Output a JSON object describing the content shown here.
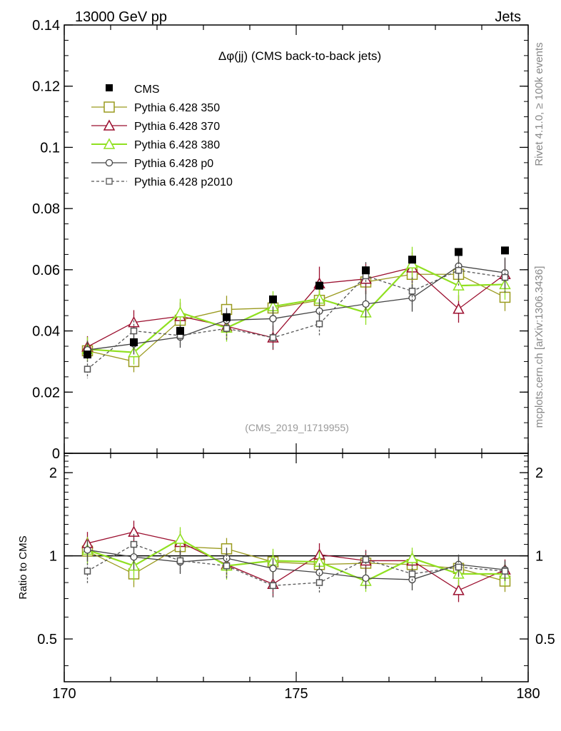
{
  "header": {
    "left": "13000 GeV pp",
    "right": "Jets"
  },
  "side_labels": {
    "rivet": "Rivet 4.1.0, ≥ 100k events",
    "mcplots": "mcplots.cern.ch [arXiv:1306.3436]"
  },
  "chart_data": {
    "type": "scatter",
    "title": "Δφ(jj) (CMS back-to-back jets)",
    "analysis_tag": "(CMS_2019_I1719955)",
    "xlabel": "",
    "ylabel": "",
    "xlim": [
      170,
      180
    ],
    "ylim": [
      0,
      0.14
    ],
    "y_ticks": [
      "0",
      "0.02",
      "0.04",
      "0.06",
      "0.08",
      "0.1",
      "0.12",
      "0.14"
    ],
    "x_ticks": [
      "170",
      "175",
      "180"
    ],
    "x": [
      170.5,
      171.5,
      172.5,
      173.5,
      174.5,
      175.5,
      176.5,
      177.5,
      178.5,
      179.5
    ],
    "series": [
      {
        "name": "CMS",
        "color": "#000000",
        "marker": "filled-square",
        "line": "none",
        "values": [
          0.0323,
          0.0363,
          0.04,
          0.0445,
          0.0503,
          0.0548,
          0.0598,
          0.0633,
          0.0658,
          0.0663
        ]
      },
      {
        "name": "Pythia 6.428 350",
        "color": "#9a9a1e",
        "marker": "open-square",
        "line": "solid",
        "values": [
          0.0335,
          0.03,
          0.0435,
          0.047,
          0.0475,
          0.05,
          0.056,
          0.0585,
          0.0585,
          0.051
        ],
        "errors": [
          0.003,
          0.0035,
          0.004,
          0.0045,
          0.004,
          0.004,
          0.004,
          0.0045,
          0.0045,
          0.0045
        ]
      },
      {
        "name": "Pythia 6.428 370",
        "color": "#9b0e2e",
        "marker": "open-triangle",
        "line": "solid",
        "values": [
          0.0348,
          0.0428,
          0.0448,
          0.0415,
          0.0378,
          0.0555,
          0.057,
          0.0607,
          0.0472,
          0.0585
        ],
        "errors": [
          0.0035,
          0.004,
          0.0045,
          0.004,
          0.004,
          0.0055,
          0.005,
          0.005,
          0.0045,
          0.005
        ]
      },
      {
        "name": "Pythia 6.428 380",
        "color": "#90e020",
        "marker": "open-triangle",
        "line": "solid",
        "values": [
          0.034,
          0.033,
          0.046,
          0.041,
          0.048,
          0.0505,
          0.046,
          0.062,
          0.0548,
          0.0552
        ],
        "errors": [
          0.004,
          0.004,
          0.0045,
          0.0045,
          0.005,
          0.005,
          0.004,
          0.0055,
          0.005,
          0.005
        ]
      },
      {
        "name": "Pythia 6.428 p0",
        "color": "#444444",
        "marker": "open-circle",
        "line": "solid",
        "values": [
          0.0338,
          0.0358,
          0.038,
          0.0435,
          0.044,
          0.0465,
          0.0488,
          0.0508,
          0.0612,
          0.059
        ],
        "errors": [
          0.003,
          0.0035,
          0.0035,
          0.004,
          0.004,
          0.004,
          0.0045,
          0.0045,
          0.005,
          0.005
        ]
      },
      {
        "name": "Pythia 6.428 p2010",
        "color": "#555555",
        "marker": "open-square",
        "line": "dashed",
        "values": [
          0.0275,
          0.04,
          0.0385,
          0.0408,
          0.0378,
          0.0423,
          0.058,
          0.053,
          0.0598,
          0.0575
        ],
        "errors": [
          0.003,
          0.0035,
          0.0035,
          0.004,
          0.004,
          0.004,
          0.0045,
          0.0045,
          0.005,
          0.005
        ]
      }
    ],
    "ratio": {
      "ylabel": "Ratio to CMS",
      "ylim": [
        0.35,
        2.35
      ],
      "y_ticks": [
        "0.5",
        "1",
        "2"
      ],
      "reference": 1.0,
      "series": [
        {
          "name": "Pythia 6.428 350",
          "values": [
            1.04,
            0.86,
            1.08,
            1.06,
            0.95,
            0.93,
            0.94,
            0.93,
            0.9,
            0.81
          ],
          "errors": [
            0.09,
            0.09,
            0.1,
            0.1,
            0.08,
            0.07,
            0.07,
            0.07,
            0.07,
            0.07
          ]
        },
        {
          "name": "Pythia 6.428 370",
          "values": [
            1.11,
            1.22,
            1.12,
            0.93,
            0.79,
            1.01,
            0.96,
            0.96,
            0.75,
            0.89
          ],
          "errors": [
            0.11,
            0.12,
            0.11,
            0.09,
            0.08,
            0.1,
            0.09,
            0.08,
            0.07,
            0.08
          ]
        },
        {
          "name": "Pythia 6.428 380",
          "values": [
            1.05,
            0.92,
            1.15,
            0.92,
            0.96,
            0.95,
            0.81,
            0.98,
            0.86,
            0.86
          ],
          "errors": [
            0.12,
            0.11,
            0.12,
            0.1,
            0.1,
            0.09,
            0.07,
            0.09,
            0.08,
            0.08
          ]
        },
        {
          "name": "Pythia 6.428 p0",
          "values": [
            1.05,
            0.99,
            0.95,
            0.98,
            0.9,
            0.87,
            0.83,
            0.82,
            0.93,
            0.89
          ],
          "errors": [
            0.09,
            0.1,
            0.09,
            0.09,
            0.08,
            0.07,
            0.07,
            0.07,
            0.08,
            0.07
          ]
        },
        {
          "name": "Pythia 6.428 p2010",
          "values": [
            0.88,
            1.1,
            0.96,
            0.92,
            0.78,
            0.8,
            0.97,
            0.86,
            0.91,
            0.88
          ],
          "errors": [
            0.09,
            0.1,
            0.09,
            0.09,
            0.08,
            0.07,
            0.07,
            0.07,
            0.08,
            0.07
          ]
        }
      ]
    }
  }
}
